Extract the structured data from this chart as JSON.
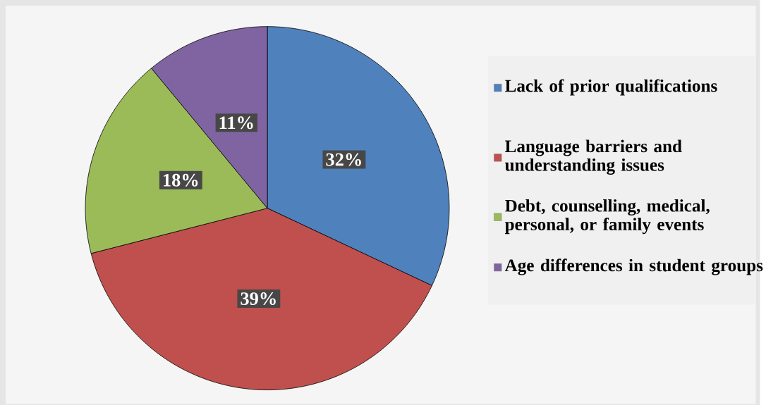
{
  "chart_data": {
    "type": "pie",
    "categories": [
      "Lack of prior qualifications",
      "Language barriers and understanding issues",
      "Debt, counselling, medical, personal, or family events",
      "Age differences in student groups"
    ],
    "values": [
      32,
      39,
      18,
      11
    ],
    "value_labels": [
      "32%",
      "39%",
      "18%",
      "11%"
    ],
    "colors": [
      "#4f81bd",
      "#c0504d",
      "#9bbb59",
      "#8064a2"
    ],
    "legend": "right"
  }
}
